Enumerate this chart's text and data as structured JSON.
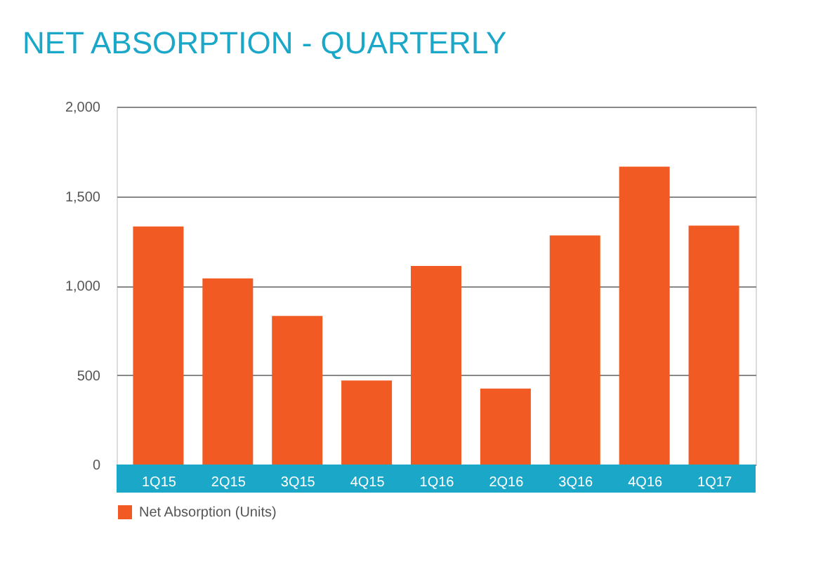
{
  "chart_data": {
    "type": "bar",
    "title": "NET ABSORPTION - QUARTERLY",
    "categories": [
      "1Q15",
      "2Q15",
      "3Q15",
      "4Q15",
      "1Q16",
      "2Q16",
      "3Q16",
      "4Q16",
      "1Q17"
    ],
    "series": [
      {
        "name": "Net Absorption (Units)",
        "color": "#f15a22",
        "values": [
          1330,
          1040,
          830,
          470,
          1110,
          425,
          1280,
          1665,
          1335
        ]
      }
    ],
    "ylim": [
      0,
      2000
    ],
    "yticks": [
      0,
      500,
      {
        "value": 1000,
        "label": "1,000"
      },
      {
        "value": 1500,
        "label": "1,500"
      },
      {
        "value": 2000,
        "label": "2,000"
      }
    ],
    "grid": "y",
    "legend": "bottom left"
  }
}
